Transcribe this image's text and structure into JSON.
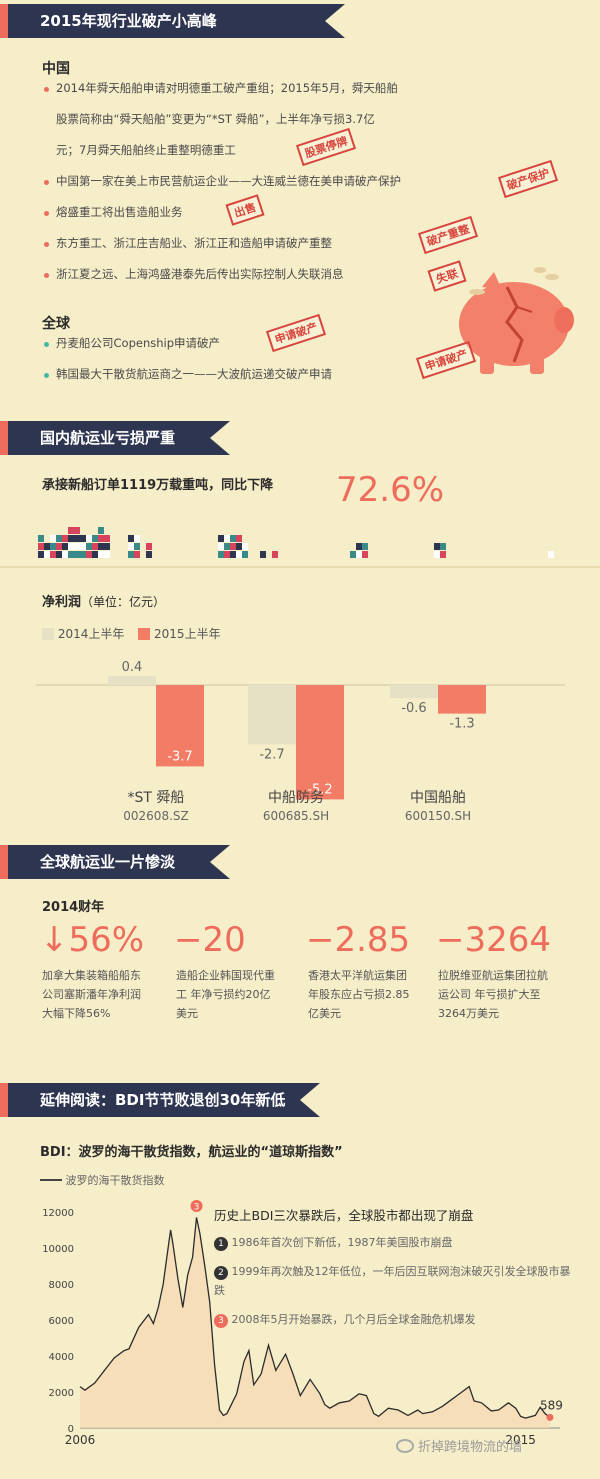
{
  "section1": {
    "title": "2015年现行业破产小高峰",
    "china_heading": "中国",
    "china_items": [
      "2014年舜天船舶申请对明德重工破产重组；2015年5月，舜天船舶",
      "股票简称由“舜天船舶”变更为“*ST 舜船”，上半年净亏损3.7亿",
      "元；7月舜天船舶终止重整明德重工",
      "中国第一家在美上市民营航运企业——大连威兰德在美申请破产保护",
      "熔盛重工将出售造船业务",
      "东方重工、浙江庄吉船业、浙江正和造船申请破产重整",
      "浙江夏之远、上海鸿盛港泰先后传出实际控制人失联消息"
    ],
    "global_heading": "全球",
    "global_items": [
      "丹麦船公司Copenship申请破产",
      "韩国最大干散货航运商之一——大波航运递交破产申请"
    ],
    "stamps": [
      "股票停牌",
      "破产保护",
      "出售",
      "破产重整",
      "失联",
      "申请破产",
      "申请破产"
    ]
  },
  "section2": {
    "title": "国内航运业亏损严重",
    "orders_text": "承接新船订单1119万载重吨，同比下降",
    "orders_pct": "72.6%",
    "profit_title": "净利润",
    "profit_unit": "（单位：亿元）",
    "legend_2014": "2014上半年",
    "legend_2015": "2015上半年",
    "color_2014": "#e6e0c4",
    "color_2015": "#f27c65"
  },
  "chart_data": [
    {
      "type": "bar",
      "title": "净利润",
      "ylabel": "（单位：亿元）",
      "categories": [
        "*ST 舜船",
        "中船防务",
        "中国船舶"
      ],
      "codes": [
        "002608.SZ",
        "600685.SH",
        "600150.SH"
      ],
      "series": [
        {
          "name": "2014上半年",
          "values": [
            0.4,
            -2.7,
            -0.6
          ],
          "labels": [
            "0.4",
            "-2.7",
            "-0.6"
          ]
        },
        {
          "name": "2015上半年",
          "values": [
            -3.7,
            -5.2,
            -1.3
          ],
          "labels": [
            "-3.7",
            "-5.2",
            "-1.3"
          ]
        }
      ],
      "ylim": [
        -5.5,
        0.6
      ]
    },
    {
      "type": "line",
      "title": "BDI：波罗的海干散货指数，航运业的“道琼斯指数”",
      "legend": "波罗的海干散货指数",
      "yticks": [
        "0",
        "2000",
        "4000",
        "6000",
        "8000",
        "10000",
        "12000"
      ],
      "ylim": [
        0,
        12000
      ],
      "xlabels": [
        "2006",
        "2015"
      ],
      "x_range": [
        2006.0,
        2015.6
      ],
      "last_value_label": "589",
      "points": [
        [
          2006.0,
          2300
        ],
        [
          2006.1,
          2100
        ],
        [
          2006.3,
          2500
        ],
        [
          2006.5,
          3200
        ],
        [
          2006.7,
          3900
        ],
        [
          2006.9,
          4300
        ],
        [
          2007.0,
          4400
        ],
        [
          2007.2,
          5600
        ],
        [
          2007.4,
          6300
        ],
        [
          2007.5,
          5800
        ],
        [
          2007.6,
          6700
        ],
        [
          2007.7,
          8000
        ],
        [
          2007.8,
          10000
        ],
        [
          2007.85,
          11000
        ],
        [
          2007.9,
          10200
        ],
        [
          2008.0,
          8300
        ],
        [
          2008.1,
          6700
        ],
        [
          2008.2,
          8500
        ],
        [
          2008.3,
          9500
        ],
        [
          2008.38,
          11700
        ],
        [
          2008.45,
          10800
        ],
        [
          2008.55,
          9000
        ],
        [
          2008.65,
          7000
        ],
        [
          2008.75,
          3500
        ],
        [
          2008.85,
          1000
        ],
        [
          2008.93,
          700
        ],
        [
          2009.0,
          800
        ],
        [
          2009.2,
          1900
        ],
        [
          2009.35,
          3700
        ],
        [
          2009.45,
          4300
        ],
        [
          2009.55,
          2400
        ],
        [
          2009.7,
          3000
        ],
        [
          2009.85,
          4600
        ],
        [
          2010.0,
          3200
        ],
        [
          2010.2,
          4100
        ],
        [
          2010.35,
          3000
        ],
        [
          2010.5,
          1800
        ],
        [
          2010.7,
          2700
        ],
        [
          2010.9,
          1900
        ],
        [
          2011.0,
          1300
        ],
        [
          2011.1,
          1100
        ],
        [
          2011.3,
          1400
        ],
        [
          2011.5,
          1500
        ],
        [
          2011.7,
          1900
        ],
        [
          2011.85,
          1800
        ],
        [
          2012.0,
          800
        ],
        [
          2012.1,
          650
        ],
        [
          2012.3,
          1100
        ],
        [
          2012.5,
          1000
        ],
        [
          2012.7,
          700
        ],
        [
          2012.9,
          1000
        ],
        [
          2013.0,
          800
        ],
        [
          2013.2,
          900
        ],
        [
          2013.4,
          1200
        ],
        [
          2013.6,
          1600
        ],
        [
          2013.8,
          2000
        ],
        [
          2013.95,
          2300
        ],
        [
          2014.05,
          1500
        ],
        [
          2014.2,
          1400
        ],
        [
          2014.4,
          950
        ],
        [
          2014.55,
          1000
        ],
        [
          2014.75,
          1400
        ],
        [
          2014.9,
          1100
        ],
        [
          2015.0,
          650
        ],
        [
          2015.1,
          550
        ],
        [
          2015.3,
          700
        ],
        [
          2015.4,
          1150
        ],
        [
          2015.5,
          800
        ],
        [
          2015.6,
          589
        ]
      ],
      "annotations": [
        {
          "num": "1",
          "text": "1986年首次创下新低，1987年美国股市崩盘"
        },
        {
          "num": "2",
          "text": "1999年再次触及12年低位，一年后因互联网泡沫破灭引发全球股市暴跌"
        },
        {
          "num": "3",
          "text": "2008年5月开始暴跌，几个月后全球金融危机爆发"
        }
      ],
      "annotation_title": "历史上BDI三次暴跌后，全球股市都出现了崩盘"
    }
  ],
  "section3": {
    "title": "全球航运业一片惨淡",
    "year": "2014财年",
    "stats": [
      {
        "value": "↓56%",
        "desc": "加拿大集装箱船船东公司塞斯潘年净利润大幅下降56%"
      },
      {
        "value": "−20",
        "desc": "造船企业韩国现代重工 年净亏损约20亿美元"
      },
      {
        "value": "−2.85",
        "desc": "香港太平洋航运集团 年股东应占亏损2.85亿美元"
      },
      {
        "value": "−3264",
        "desc": "拉脱维亚航运集团拉航运公司 年亏损扩大至3264万美元"
      }
    ]
  },
  "section4": {
    "title": "延伸阅读：BDI节节败退创30年新低",
    "watermark": "折掉跨境物流的墙"
  }
}
